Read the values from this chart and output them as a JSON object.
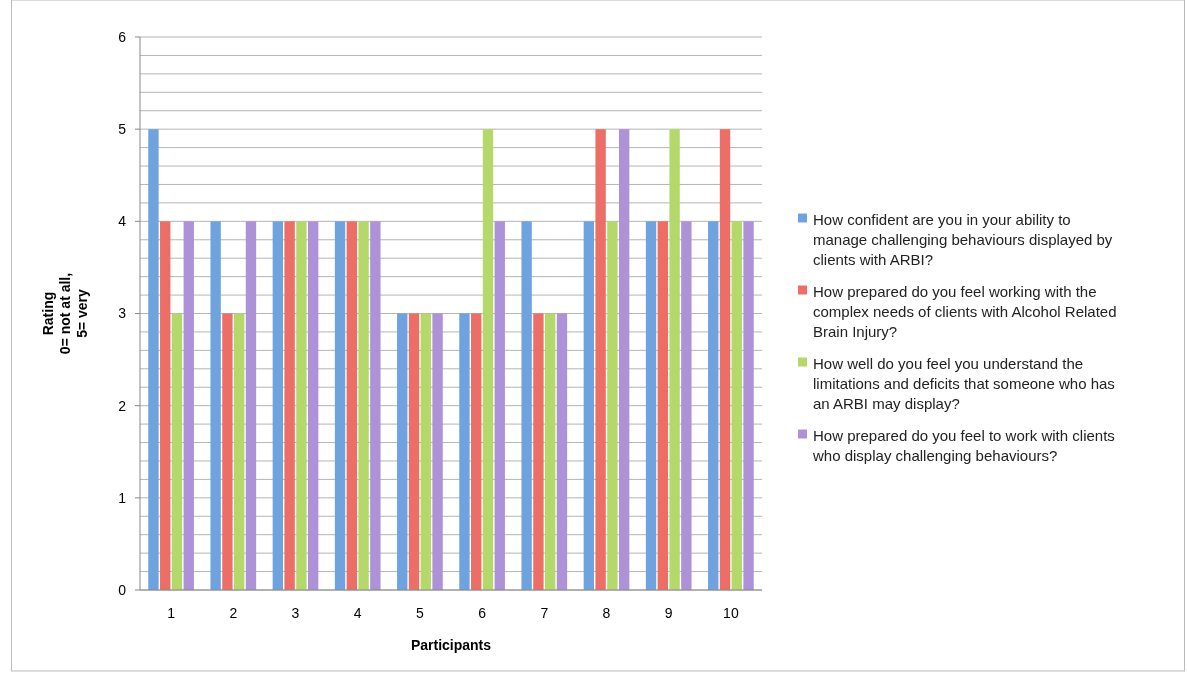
{
  "chart_data": {
    "type": "bar",
    "xlabel": "Participants",
    "ylabel": "Rating\n0= not at all,\n5= very",
    "categories": [
      "1",
      "2",
      "3",
      "4",
      "5",
      "6",
      "7",
      "8",
      "9",
      "10"
    ],
    "series": [
      {
        "name": "How confident are you in your ability to manage challenging behaviours displayed by clients with ARBI?",
        "color": "#6fa3e0",
        "values": [
          5,
          4,
          4,
          4,
          3,
          3,
          4,
          4,
          4,
          4
        ]
      },
      {
        "name": "How prepared do you feel working with the complex needs of clients with Alcohol Related Brain Injury?",
        "color": "#ec6e66",
        "values": [
          4,
          3,
          4,
          4,
          3,
          3,
          3,
          5,
          4,
          5
        ]
      },
      {
        "name": "How well do you feel you understand the limitations and deficits that someone who has an ARBI may display?",
        "color": "#b4d96a",
        "values": [
          3,
          3,
          4,
          4,
          3,
          5,
          3,
          4,
          5,
          4
        ]
      },
      {
        "name": "How prepared do you feel to work with clients who display challenging behaviours?",
        "color": "#ae92d8",
        "values": [
          4,
          4,
          4,
          4,
          3,
          4,
          3,
          5,
          4,
          4
        ]
      }
    ],
    "ylim": [
      0,
      6
    ],
    "yticks": [
      0,
      {
        "value": 0.2,
        "label": null
      },
      {
        "value": 0.4,
        "label": null
      },
      {
        "value": 0.6,
        "label": null
      },
      {
        "value": 0.8,
        "label": null
      },
      1,
      {
        "value": 1.2,
        "label": null
      },
      {
        "value": 1.4,
        "label": null
      },
      {
        "value": 1.6,
        "label": null
      },
      {
        "value": 1.8,
        "label": null
      },
      2,
      {
        "value": 2.2,
        "label": null
      },
      {
        "value": 2.4,
        "label": null
      },
      {
        "value": 2.6,
        "label": null
      },
      {
        "value": 2.8,
        "label": null
      },
      3,
      {
        "value": 3.2,
        "label": null
      },
      {
        "value": 3.4,
        "label": null
      },
      {
        "value": 3.6,
        "label": null
      },
      {
        "value": 3.8,
        "label": null
      },
      4,
      {
        "value": 4.2,
        "label": null
      },
      {
        "value": 4.4,
        "label": null
      },
      {
        "value": 4.6,
        "label": null
      },
      {
        "value": 4.8,
        "label": null
      },
      5,
      {
        "value": 5.2,
        "label": null
      },
      {
        "value": 5.4,
        "label": null
      },
      {
        "value": 5.6,
        "label": null
      },
      {
        "value": 5.8,
        "label": null
      },
      6
    ],
    "grid": "y",
    "legend": "right"
  }
}
